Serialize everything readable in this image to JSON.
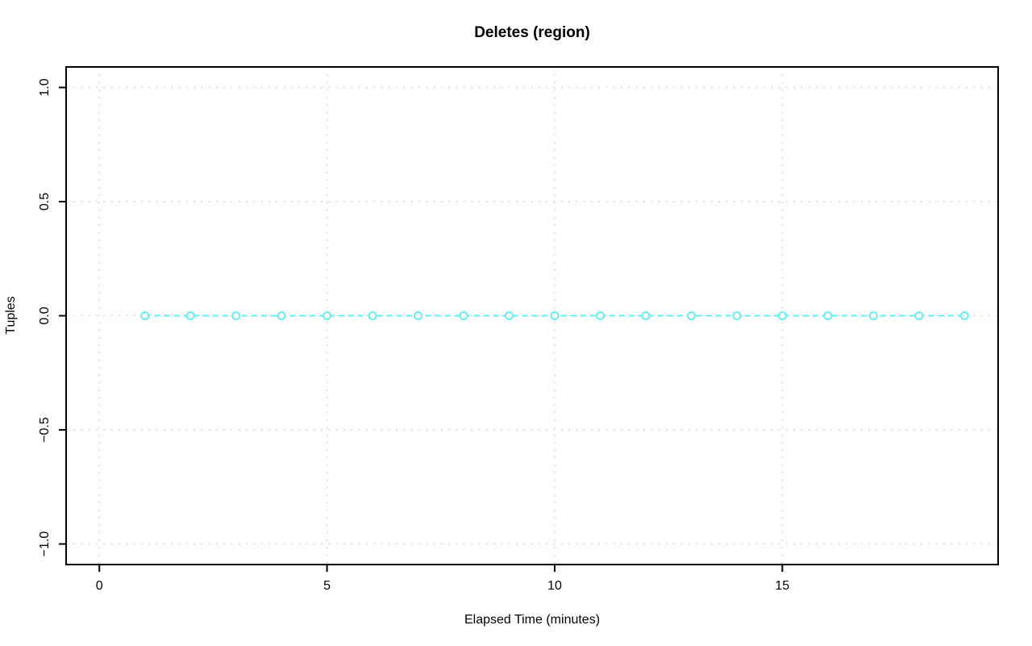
{
  "chart_data": {
    "type": "line",
    "title": "Deletes (region)",
    "xlabel": "Elapsed Time (minutes)",
    "ylabel": "Tuples",
    "x": [
      1,
      2,
      3,
      4,
      5,
      6,
      7,
      8,
      9,
      10,
      11,
      12,
      13,
      14,
      15,
      16,
      17,
      18,
      19
    ],
    "y": [
      0,
      0,
      0,
      0,
      0,
      0,
      0,
      0,
      0,
      0,
      0,
      0,
      0,
      0,
      0,
      0,
      0,
      0,
      0
    ],
    "xlim": [
      -0.73,
      19.74
    ],
    "ylim": [
      -1.09,
      1.09
    ],
    "xticks": [
      0,
      5,
      10,
      15
    ],
    "xtick_labels": [
      "0",
      "5",
      "10",
      "15"
    ],
    "yticks": [
      -1.0,
      -0.5,
      0.0,
      0.5,
      1.0
    ],
    "ytick_labels": [
      "−1.0",
      "−0.5",
      "0.0",
      "0.5",
      "1.0"
    ],
    "grid": "dotted",
    "legend": "none",
    "line_style": "dashed",
    "marker": "open-circle",
    "colors": {
      "series": "#5EEDF1",
      "grid": "#D6D6D6",
      "axis": "#000000",
      "background": "#FFFFFF"
    }
  }
}
